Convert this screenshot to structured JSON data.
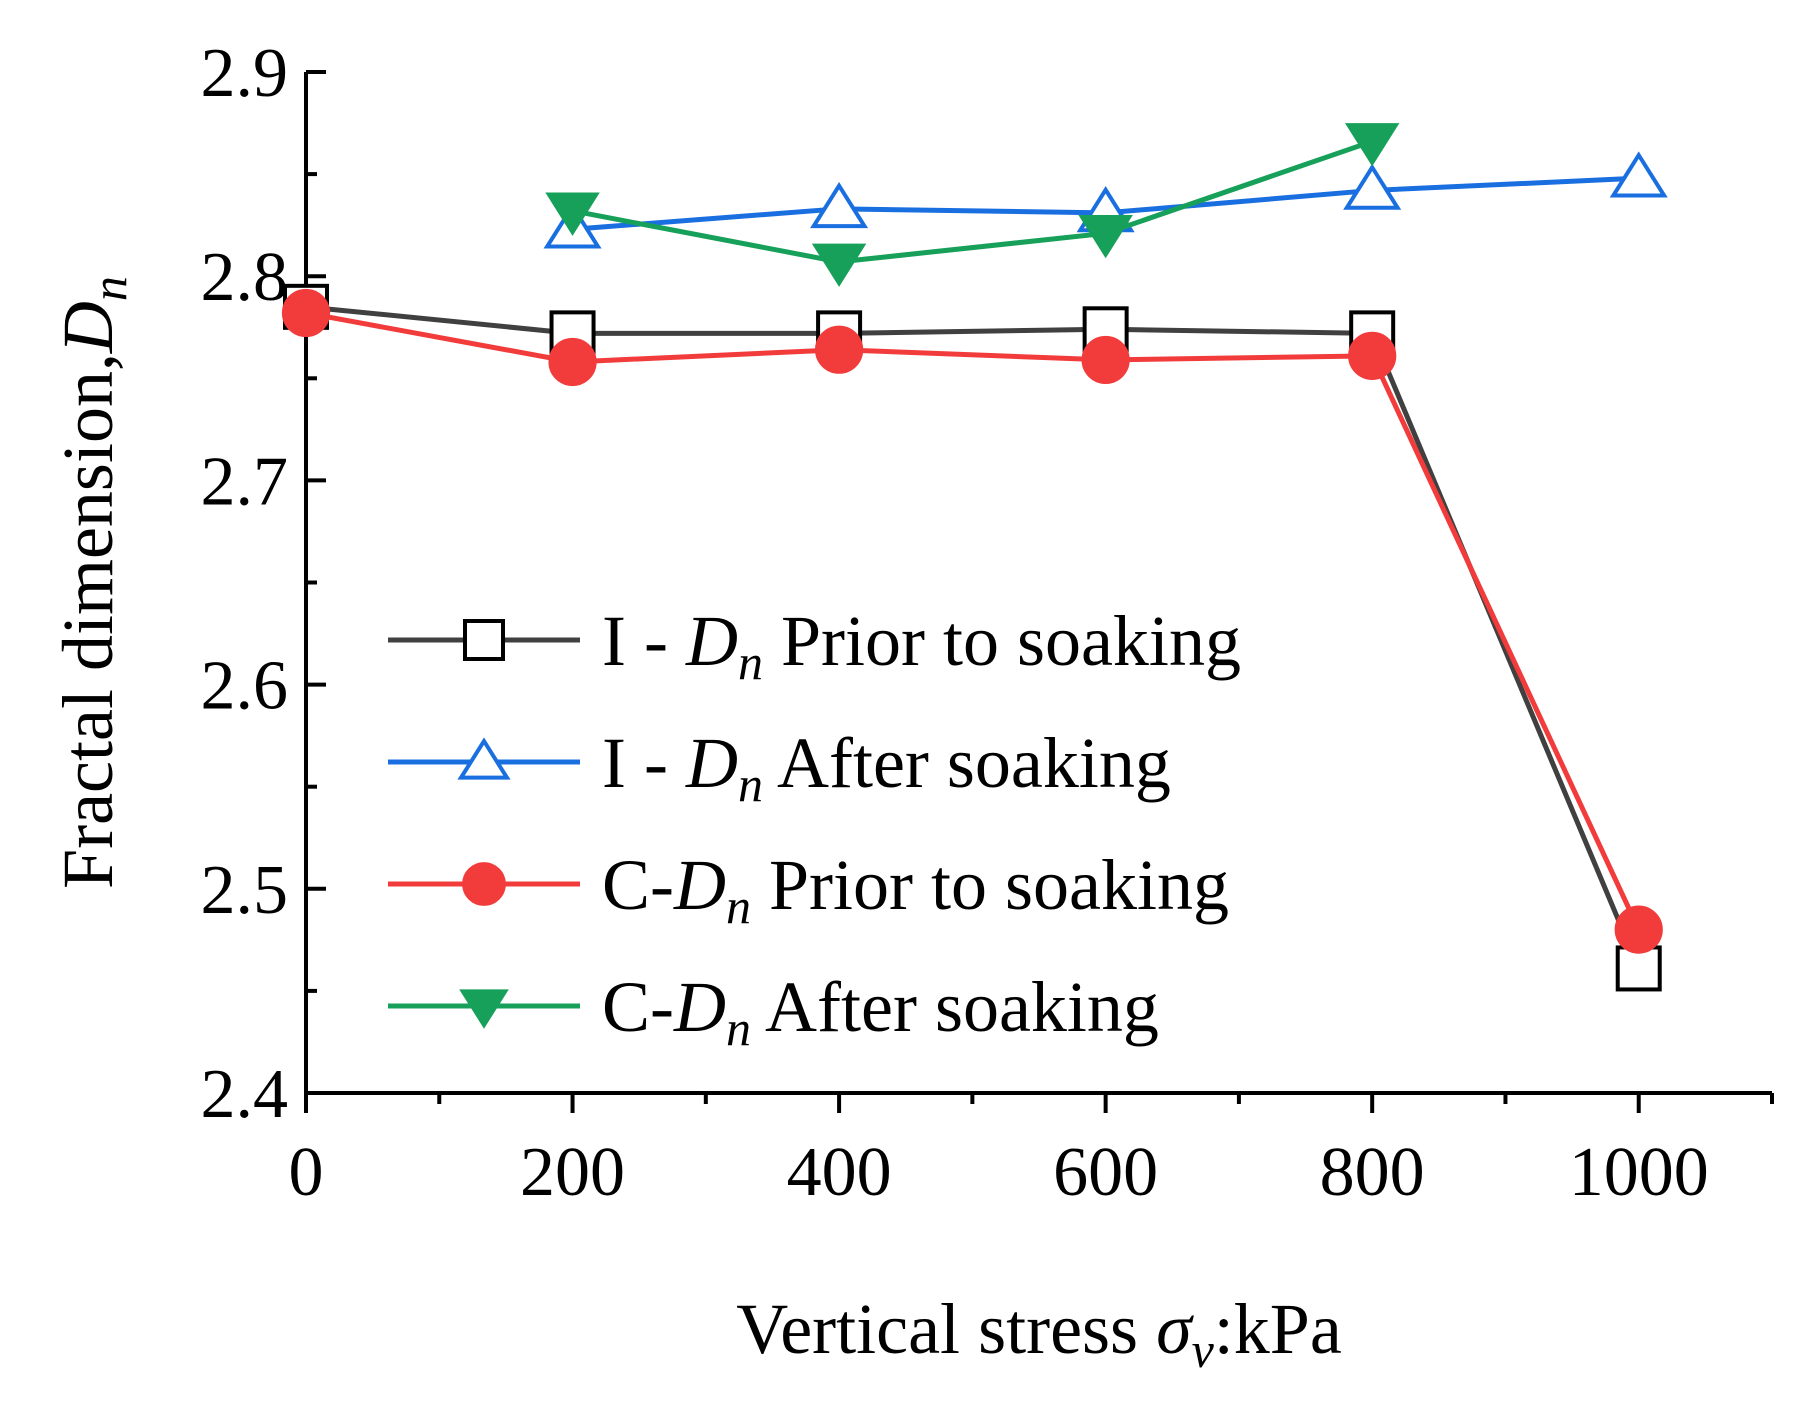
{
  "chart_data": {
    "type": "line",
    "title": "",
    "xlabel": {
      "main": "Vertical stress ",
      "symbol": "σ",
      "sub": "v",
      "tail": ":kPa"
    },
    "ylabel": {
      "main": "Fractal dimension,",
      "symbol": "D",
      "sub": "n"
    },
    "xlim": [
      0,
      1100
    ],
    "ylim": [
      2.4,
      2.9
    ],
    "x_ticks": [
      0,
      200,
      400,
      600,
      800,
      1000
    ],
    "x_tick_labels": [
      "0",
      "200",
      "400",
      "600",
      "800",
      "1000"
    ],
    "y_ticks": [
      2.4,
      2.5,
      2.6,
      2.7,
      2.8,
      2.9
    ],
    "y_tick_labels": [
      "2.4",
      "2.5",
      "2.6",
      "2.7",
      "2.8",
      "2.9"
    ],
    "legend_position": "center-left",
    "series": [
      {
        "name": "I - Dn Prior to soaking",
        "legend": {
          "prefix": "I - ",
          "symbol": "D",
          "sub": "n",
          "suffix": " Prior to soaking"
        },
        "marker": "open-square",
        "color": "#404040",
        "x": [
          0,
          200,
          400,
          600,
          800,
          1000
        ],
        "values": [
          2.785,
          2.772,
          2.772,
          2.774,
          2.772,
          2.461
        ]
      },
      {
        "name": "I - Dn After soaking",
        "legend": {
          "prefix": "I - ",
          "symbol": "D",
          "sub": "n",
          "suffix": " After soaking"
        },
        "marker": "open-triangle-up",
        "color": "#1a6fe0",
        "x": [
          200,
          400,
          600,
          800,
          1000
        ],
        "values": [
          2.823,
          2.833,
          2.831,
          2.842,
          2.848
        ]
      },
      {
        "name": "C-Dn Prior to soaking",
        "legend": {
          "prefix": "C-",
          "symbol": "D",
          "sub": "n",
          "suffix": " Prior to soaking"
        },
        "marker": "filled-circle",
        "color": "#f23c3c",
        "x": [
          0,
          200,
          400,
          600,
          800,
          1000
        ],
        "values": [
          2.782,
          2.758,
          2.764,
          2.759,
          2.761,
          2.48
        ]
      },
      {
        "name": "C-Dn After soaking",
        "legend": {
          "prefix": "C-",
          "symbol": "D",
          "sub": "n",
          "suffix": " After soaking"
        },
        "marker": "filled-triangle-down",
        "color": "#16a05a",
        "x": [
          200,
          400,
          600,
          800
        ],
        "values": [
          2.832,
          2.807,
          2.821,
          2.866
        ]
      }
    ]
  }
}
